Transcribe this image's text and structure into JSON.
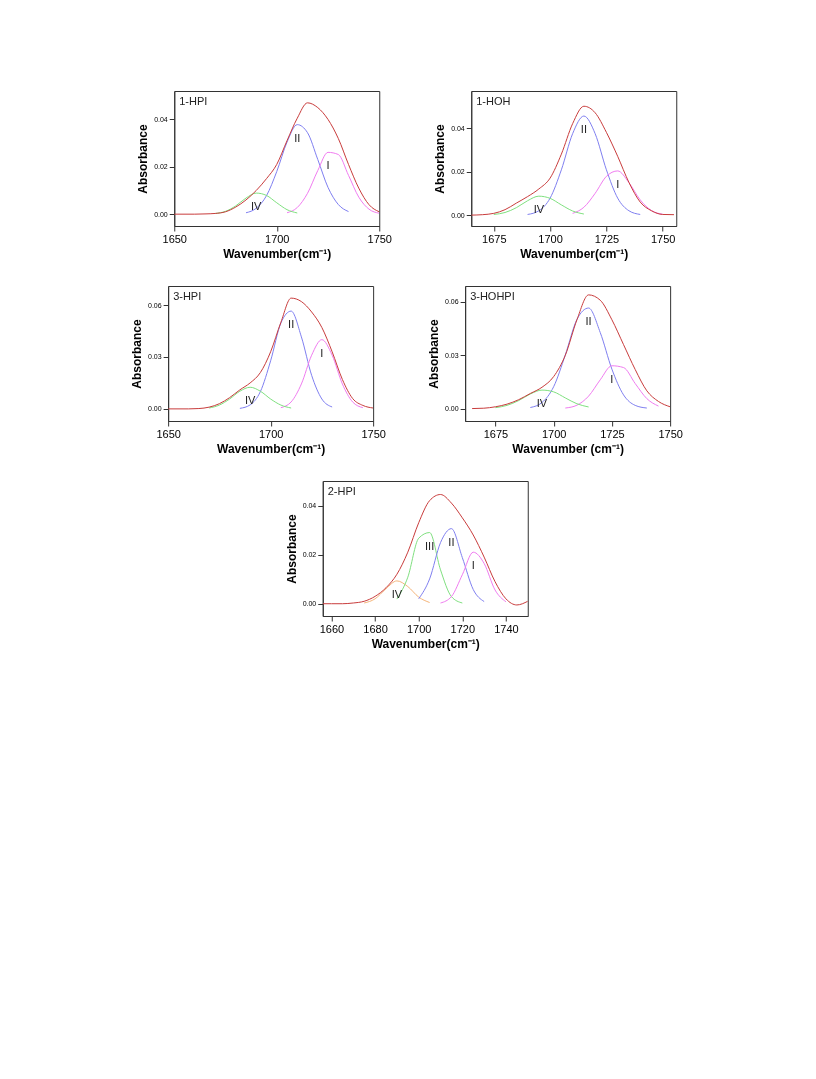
{
  "chart_data": [
    {
      "type": "line",
      "title": "1-HPI",
      "xlabel": "Wavenumber(cm⁻¹)",
      "ylabel": "Absorbance",
      "x": [
        1650,
        1660,
        1665,
        1670,
        1675,
        1680,
        1685,
        1690,
        1695,
        1700,
        1705,
        1710,
        1715,
        1720,
        1725,
        1730,
        1735,
        1740,
        1745,
        1750
      ],
      "series": [
        {
          "color": "#7f7ff0",
          "values": [
            null,
            null,
            null,
            null,
            null,
            null,
            0.0006,
            0.0025,
            0.0078,
            0.018,
            0.0304,
            0.0378,
            0.0344,
            0.0231,
            0.0113,
            0.0041,
            0.0011,
            null,
            null,
            null
          ]
        },
        {
          "color": "#f07cf0",
          "values": [
            null,
            null,
            null,
            null,
            null,
            null,
            null,
            null,
            null,
            null,
            0.0006,
            0.0028,
            0.0088,
            0.0184,
            0.0261,
            0.0252,
            0.0164,
            0.0072,
            0.0021,
            0.0004
          ]
        },
        {
          "color": "#7fe07f",
          "values": [
            null,
            null,
            null,
            0.0003,
            0.0012,
            0.0035,
            0.0068,
            0.0089,
            0.0079,
            0.0048,
            0.0019,
            0.0005,
            null,
            null,
            null,
            null,
            null,
            null,
            null,
            null
          ]
        },
        {
          "color": "#c83c3c",
          "values": [
            0,
            0,
            0.0001,
            0.0003,
            0.001,
            0.003,
            0.006,
            0.01,
            0.015,
            0.021,
            0.031,
            0.0405,
            0.047,
            0.045,
            0.04,
            0.032,
            0.021,
            0.011,
            0.004,
            0.001
          ]
        }
      ],
      "xlim": [
        1650,
        1750
      ],
      "xticks": [
        1650,
        1700,
        1750
      ],
      "ylim": [
        -0.005,
        0.052
      ],
      "yticks": [
        {
          "value": 0,
          "label": "0.00"
        },
        {
          "value": 0.02,
          "label": "0.02"
        },
        {
          "value": 0.04,
          "label": "0.04"
        }
      ],
      "annotations": [
        {
          "text": "II",
          "x": 1710,
          "y": 0.0378
        },
        {
          "text": "I",
          "x": 1725,
          "y": 0.0261
        },
        {
          "text": "IV",
          "x": 1690,
          "y": 0.0089
        }
      ]
    },
    {
      "type": "line",
      "title": "1-HOH",
      "xlabel": "Wavenumber(cm⁻¹)",
      "ylabel": "Absorbance",
      "x": [
        1665,
        1670,
        1675,
        1680,
        1685,
        1690,
        1695,
        1700,
        1705,
        1710,
        1715,
        1720,
        1725,
        1730,
        1735,
        1740,
        1745,
        1750,
        1755
      ],
      "series": [
        {
          "color": "#7f7ff0",
          "values": [
            null,
            null,
            null,
            null,
            null,
            0.0003,
            0.002,
            0.0078,
            0.0208,
            0.0374,
            0.0455,
            0.0374,
            0.0208,
            0.0078,
            0.002,
            0.0003,
            null,
            null,
            null
          ]
        },
        {
          "color": "#f07cf0",
          "values": [
            null,
            null,
            null,
            null,
            null,
            null,
            null,
            null,
            null,
            0.0008,
            0.0036,
            0.01,
            0.0178,
            0.0203,
            0.0149,
            0.007,
            0.0021,
            0.0004,
            null
          ]
        },
        {
          "color": "#7fe07f",
          "values": [
            null,
            null,
            0.0003,
            0.0012,
            0.0034,
            0.0066,
            0.0087,
            0.0077,
            0.0047,
            0.0019,
            0.0005,
            null,
            null,
            null,
            null,
            null,
            null,
            null,
            null
          ]
        },
        {
          "color": "#c83c3c",
          "values": [
            0,
            0.0002,
            0.0008,
            0.0025,
            0.0055,
            0.0085,
            0.012,
            0.017,
            0.028,
            0.042,
            0.05,
            0.047,
            0.038,
            0.027,
            0.015,
            0.006,
            0.002,
            0.0003,
            0.0002
          ]
        }
      ],
      "xlim": [
        1665,
        1756
      ],
      "xticks": [
        1675,
        1700,
        1725,
        1750
      ],
      "ylim": [
        -0.005,
        0.057
      ],
      "yticks": [
        {
          "value": 0,
          "label": "0.00"
        },
        {
          "value": 0.02,
          "label": "0.02"
        },
        {
          "value": 0.04,
          "label": "0.04"
        }
      ],
      "annotations": [
        {
          "text": "II",
          "x": 1715,
          "y": 0.0455
        },
        {
          "text": "I",
          "x": 1730,
          "y": 0.0203
        },
        {
          "text": "IV",
          "x": 1695,
          "y": 0.0087
        }
      ]
    },
    {
      "type": "line",
      "title": "3-HPI",
      "xlabel": "Wavenumber(cm⁻¹)",
      "ylabel": "Absorbance",
      "x": [
        1650,
        1660,
        1665,
        1670,
        1675,
        1680,
        1685,
        1690,
        1695,
        1700,
        1705,
        1710,
        1715,
        1720,
        1725,
        1730,
        1735,
        1740,
        1745,
        1750
      ],
      "series": [
        {
          "color": "#7f7ff0",
          "values": [
            null,
            null,
            null,
            null,
            null,
            null,
            0.0003,
            0.0023,
            0.01,
            0.0278,
            0.0496,
            0.0565,
            0.0416,
            0.0194,
            0.0057,
            0.0011,
            null,
            null,
            null,
            null
          ]
        },
        {
          "color": "#f07cf0",
          "values": [
            null,
            null,
            null,
            null,
            null,
            null,
            null,
            null,
            null,
            null,
            0.0007,
            0.004,
            0.0144,
            0.031,
            0.04,
            0.031,
            0.0144,
            0.004,
            0.0007,
            null
          ]
        },
        {
          "color": "#7fe07f",
          "values": [
            null,
            null,
            null,
            0.0005,
            0.0022,
            0.0057,
            0.0102,
            0.0125,
            0.0102,
            0.0057,
            0.0022,
            0.0005,
            null,
            null,
            null,
            null,
            null,
            null,
            null,
            null
          ]
        },
        {
          "color": "#c83c3c",
          "values": [
            0,
            0,
            0.0002,
            0.001,
            0.003,
            0.0065,
            0.011,
            0.015,
            0.021,
            0.033,
            0.05,
            0.064,
            0.062,
            0.056,
            0.047,
            0.033,
            0.017,
            0.006,
            0.002,
            0.0005
          ]
        }
      ],
      "xlim": [
        1650,
        1750
      ],
      "xticks": [
        1650,
        1700,
        1750
      ],
      "ylim": [
        -0.007,
        0.071
      ],
      "yticks": [
        {
          "value": 0,
          "label": "0.00"
        },
        {
          "value": 0.03,
          "label": "0.03"
        },
        {
          "value": 0.06,
          "label": "0.06"
        }
      ],
      "annotations": [
        {
          "text": "II",
          "x": 1710,
          "y": 0.0565
        },
        {
          "text": "I",
          "x": 1725,
          "y": 0.04
        },
        {
          "text": "IV",
          "x": 1690,
          "y": 0.0125
        }
      ]
    },
    {
      "type": "line",
      "title": "3-HOHPI",
      "xlabel": "Wavenumber (cm⁻¹)",
      "ylabel": "Absorbance",
      "x": [
        1665,
        1670,
        1675,
        1680,
        1685,
        1690,
        1695,
        1700,
        1705,
        1710,
        1715,
        1720,
        1725,
        1730,
        1735,
        1740,
        1745,
        1750
      ],
      "series": [
        {
          "color": "#7f7ff0",
          "values": [
            null,
            null,
            null,
            null,
            null,
            0.0006,
            0.0034,
            0.0123,
            0.0302,
            0.0502,
            0.0566,
            0.0428,
            0.0222,
            0.0077,
            0.0018,
            0.0003,
            null,
            null
          ]
        },
        {
          "color": "#f07cf0",
          "values": [
            null,
            null,
            null,
            null,
            null,
            null,
            null,
            null,
            0.0003,
            0.0019,
            0.007,
            0.0162,
            0.0241,
            0.0231,
            0.0141,
            0.0056,
            0.0014,
            null
          ]
        },
        {
          "color": "#7fe07f",
          "values": [
            null,
            null,
            0.0005,
            0.0018,
            0.0045,
            0.0082,
            0.0104,
            0.0094,
            0.006,
            0.0027,
            0.0009,
            null,
            null,
            null,
            null,
            null,
            null,
            null
          ]
        },
        {
          "color": "#c83c3c",
          "values": [
            0,
            0.0002,
            0.001,
            0.0025,
            0.005,
            0.0085,
            0.012,
            0.018,
            0.03,
            0.05,
            0.064,
            0.061,
            0.05,
            0.036,
            0.022,
            0.01,
            0.004,
            0.001
          ]
        }
      ],
      "xlim": [
        1662,
        1750
      ],
      "xticks": [
        1675,
        1700,
        1725,
        1750
      ],
      "ylim": [
        -0.007,
        0.069
      ],
      "yticks": [
        {
          "value": 0,
          "label": "0.00"
        },
        {
          "value": 0.03,
          "label": "0.03"
        },
        {
          "value": 0.06,
          "label": "0.06"
        }
      ],
      "annotations": [
        {
          "text": "II",
          "x": 1715,
          "y": 0.0566
        },
        {
          "text": "I",
          "x": 1725,
          "y": 0.0241
        },
        {
          "text": "IV",
          "x": 1695,
          "y": 0.0104
        }
      ]
    },
    {
      "type": "line",
      "title": "2-HPI",
      "xlabel": "Wavenumber(cm⁻¹)",
      "ylabel": "Absorbance",
      "x": [
        1656,
        1660,
        1665,
        1670,
        1675,
        1680,
        1685,
        1690,
        1695,
        1700,
        1705,
        1710,
        1715,
        1720,
        1725,
        1730,
        1735,
        1740,
        1745,
        1750
      ],
      "series": [
        {
          "color": "#f5b57a",
          "values": [
            null,
            null,
            null,
            null,
            0.0003,
            0.002,
            0.0061,
            0.0093,
            0.007,
            0.0027,
            0.0005,
            null,
            null,
            null,
            null,
            null,
            null,
            null,
            null,
            null
          ]
        },
        {
          "color": "#7fe07f",
          "values": [
            null,
            null,
            null,
            null,
            null,
            null,
            null,
            0.0019,
            0.0108,
            0.0267,
            0.029,
            0.0138,
            0.0029,
            0.0003,
            null,
            null,
            null,
            null,
            null,
            null
          ]
        },
        {
          "color": "#7f7ff0",
          "values": [
            null,
            null,
            null,
            null,
            null,
            null,
            null,
            null,
            null,
            0.002,
            0.0101,
            0.0249,
            0.0306,
            0.0188,
            0.0058,
            0.0009,
            null,
            null,
            null,
            null
          ]
        },
        {
          "color": "#f07cf0",
          "values": [
            null,
            null,
            null,
            null,
            null,
            null,
            null,
            null,
            null,
            null,
            null,
            0.0003,
            0.0029,
            0.0118,
            0.021,
            0.0164,
            0.0056,
            0.0008,
            null,
            null
          ]
        },
        {
          "color": "#c83c3c",
          "values": [
            0,
            0,
            0,
            0.0003,
            0.001,
            0.003,
            0.0065,
            0.012,
            0.021,
            0.033,
            0.042,
            0.0445,
            0.041,
            0.035,
            0.028,
            0.019,
            0.009,
            0.002,
            -0.0005,
            0.001
          ]
        }
      ],
      "xlim": [
        1656,
        1750
      ],
      "xticks": [
        1660,
        1680,
        1700,
        1720,
        1740
      ],
      "ylim": [
        -0.005,
        0.05
      ],
      "yticks": [
        {
          "value": 0,
          "label": "0.00"
        },
        {
          "value": 0.02,
          "label": "0.02"
        },
        {
          "value": 0.04,
          "label": "0.04"
        }
      ],
      "annotations": [
        {
          "text": "III",
          "x": 1705,
          "y": 0.029
        },
        {
          "text": "II",
          "x": 1715,
          "y": 0.0306
        },
        {
          "text": "I",
          "x": 1725,
          "y": 0.021
        },
        {
          "text": "IV",
          "x": 1690,
          "y": 0.0093
        }
      ]
    }
  ]
}
